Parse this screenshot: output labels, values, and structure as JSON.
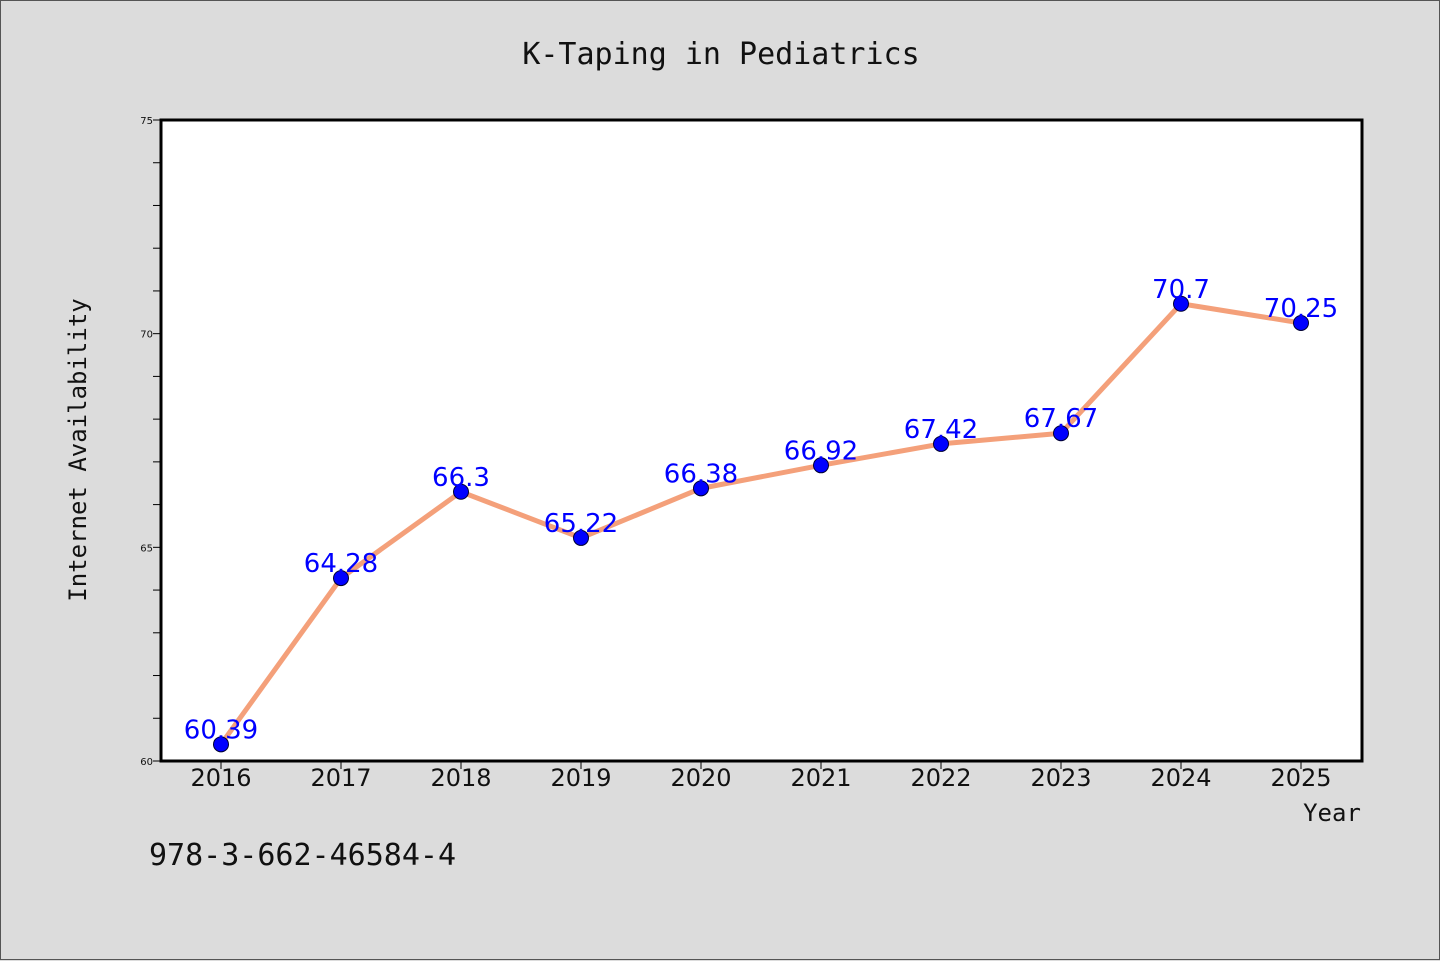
{
  "colors": {
    "line": "#f4a07a",
    "marker": "#0000ff",
    "data_label": "#0000ff",
    "plot_bg": "#ffffff",
    "figure_bg": "#dcdcdc"
  },
  "chart_data": {
    "type": "line",
    "title": "K-Taping in Pediatrics",
    "xlabel": "Year",
    "ylabel": "Internet Availability",
    "categories": [
      "2016",
      "2017",
      "2018",
      "2019",
      "2020",
      "2021",
      "2022",
      "2023",
      "2024",
      "2025"
    ],
    "values": [
      60.39,
      64.28,
      66.3,
      65.22,
      66.38,
      66.92,
      67.42,
      67.67,
      70.7,
      70.25
    ],
    "data_labels": [
      "60.39",
      "64.28",
      "66.3",
      "65.22",
      "66.38",
      "66.92",
      "67.42",
      "67.67",
      "70.7",
      "70.25"
    ],
    "ylim": [
      60,
      75
    ],
    "yticks": [
      60,
      65,
      70,
      75
    ],
    "grid": false,
    "legend": "none"
  },
  "footnote": "978-3-662-46584-4"
}
